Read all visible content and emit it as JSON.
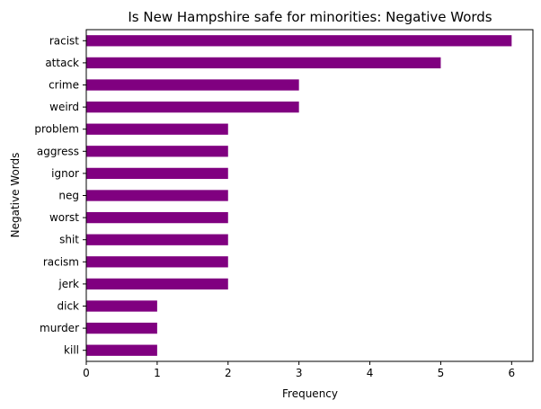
{
  "chart_data": {
    "type": "bar",
    "orientation": "horizontal",
    "title": "Is New Hampshire safe for minorities: Negative Words",
    "xlabel": "Frequency",
    "ylabel": "Negative Words",
    "categories": [
      "racist",
      "attack",
      "crime",
      "weird",
      "problem",
      "aggress",
      "ignor",
      "neg",
      "worst",
      "shit",
      "racism",
      "jerk",
      "dick",
      "murder",
      "kill"
    ],
    "values": [
      6,
      5,
      3,
      3,
      2,
      2,
      2,
      2,
      2,
      2,
      2,
      2,
      1,
      1,
      1
    ],
    "xlim": [
      0,
      6.3
    ],
    "xticks": [
      0,
      1,
      2,
      3,
      4,
      5,
      6
    ],
    "grid": false,
    "bar_color": "#800080"
  }
}
